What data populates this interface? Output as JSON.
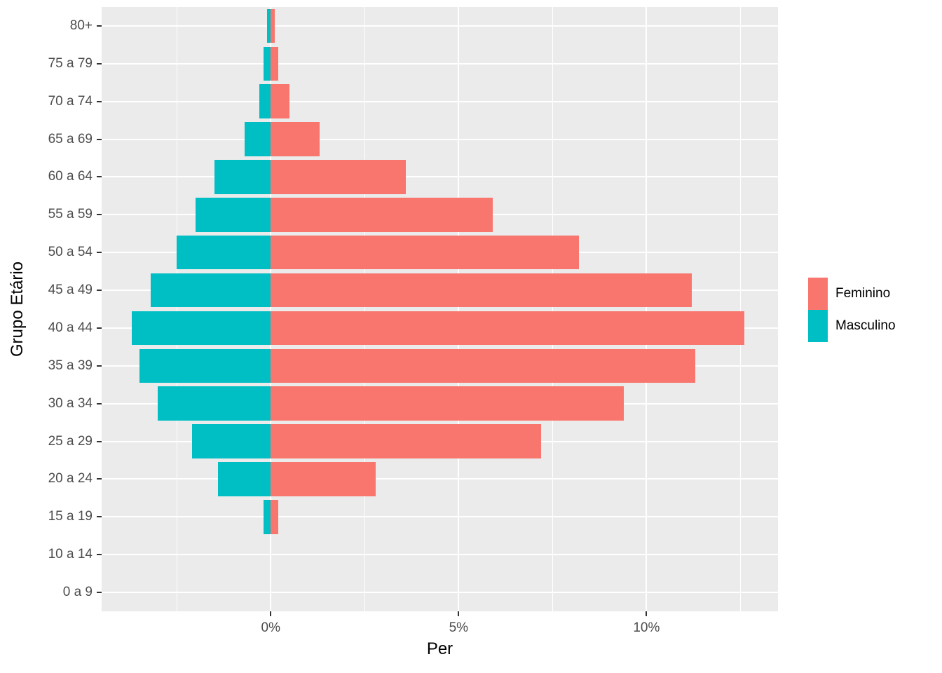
{
  "chart_data": {
    "type": "bar",
    "orientation": "horizontal-pyramid",
    "title": "",
    "xlabel": "Per",
    "ylabel": "Grupo Etário",
    "categories": [
      "80+",
      "75 a 79",
      "70 a 74",
      "65 a 69",
      "60 a 64",
      "55 a 59",
      "50 a 54",
      "45 a 49",
      "40 a 44",
      "35 a 39",
      "30 a 34",
      "25 a 29",
      "20 a 24",
      "15 a 19",
      "10 a 14",
      "0 a 9"
    ],
    "series": [
      {
        "name": "Feminino",
        "color": "#F8766D",
        "direction": "right",
        "values": [
          0.1,
          0.2,
          0.5,
          1.3,
          3.6,
          5.9,
          8.2,
          11.2,
          12.6,
          11.3,
          9.4,
          7.2,
          2.8,
          0.2,
          0,
          0
        ]
      },
      {
        "name": "Masculino",
        "color": "#00BFC4",
        "direction": "left",
        "values": [
          0.1,
          0.2,
          0.3,
          0.7,
          1.5,
          2.0,
          2.5,
          3.2,
          3.7,
          3.5,
          3.0,
          2.1,
          1.4,
          0.2,
          0,
          0
        ]
      }
    ],
    "x_ticks": [
      {
        "value": 0,
        "label": "0%"
      },
      {
        "value": 5,
        "label": "5%"
      },
      {
        "value": 10,
        "label": "10%"
      }
    ],
    "x_minor_gridlines": [
      -2.5,
      2.5,
      7.5,
      12.5
    ],
    "xlim": [
      -4.5,
      13.5
    ],
    "panel_bg": "#EBEBEB",
    "grid_color": "#FFFFFF",
    "legend_position": "right",
    "legend_items": [
      "Feminino",
      "Masculino"
    ]
  }
}
